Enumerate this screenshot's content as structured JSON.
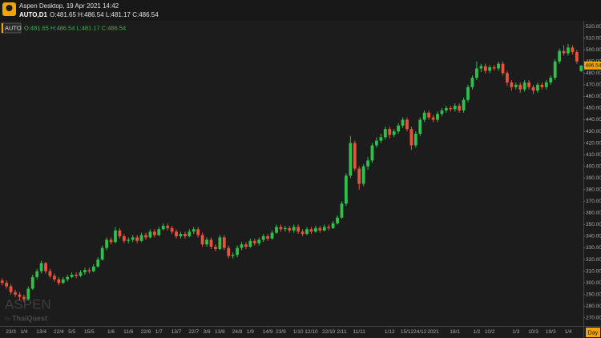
{
  "header": {
    "title": "Aspen Desktop, 19 Apr 2021 14:42",
    "symbol": "AUTO,D1",
    "ohlc": "O:481.65 H:486.54 L:481.17 C:486.54"
  },
  "chart_data": {
    "type": "candlestick",
    "symbol": "AUTO",
    "ohlc_text": "O:481.65 H:486.54 L:481.17 C:486.54",
    "categories": [
      null,
      null,
      "23/3",
      null,
      null,
      "1/4",
      null,
      null,
      null,
      "13/4",
      null,
      null,
      null,
      "22/4",
      null,
      null,
      "5/5",
      null,
      null,
      null,
      "15/5",
      null,
      null,
      null,
      null,
      "1/6",
      null,
      null,
      null,
      "11/6",
      null,
      null,
      null,
      "22/6",
      null,
      null,
      "1/7",
      null,
      null,
      null,
      "13/7",
      null,
      null,
      null,
      "22/7",
      null,
      null,
      "3/8",
      null,
      null,
      "13/8",
      null,
      null,
      null,
      "24/8",
      null,
      null,
      "1/9",
      null,
      null,
      null,
      "14/9",
      null,
      null,
      "23/9",
      null,
      null,
      null,
      "1/10",
      null,
      null,
      "12/10",
      null,
      null,
      null,
      "22/10",
      null,
      null,
      "2/11",
      null,
      null,
      null,
      "11/11",
      null,
      null,
      null,
      null,
      null,
      null,
      "1/12",
      null,
      null,
      null,
      "15/12",
      null,
      null,
      "24/12",
      null,
      null,
      "2021",
      null,
      null,
      null,
      null,
      "18/1",
      null,
      null,
      null,
      null,
      "1/2",
      null,
      null,
      "10/2",
      null,
      null,
      null,
      null,
      null,
      "1/3",
      null,
      null,
      null,
      "10/3",
      null,
      null,
      null,
      "19/3",
      null,
      null,
      null,
      "1/4",
      null,
      null,
      null
    ],
    "open": [
      302,
      300,
      297,
      292,
      290,
      288,
      286,
      295,
      305,
      310,
      317,
      310,
      306,
      303,
      300,
      303,
      305,
      307,
      306,
      309,
      311,
      310,
      314,
      320,
      330,
      337,
      335,
      345,
      340,
      336,
      337,
      339,
      336,
      341,
      339,
      344,
      341,
      346,
      349,
      347,
      344,
      340,
      342,
      340,
      344,
      346,
      341,
      333,
      337,
      331,
      329,
      339,
      330,
      323,
      324,
      330,
      333,
      331,
      336,
      334,
      337,
      340,
      338,
      343,
      348,
      346,
      347,
      345,
      348,
      344,
      342,
      346,
      344,
      347,
      345,
      348,
      347,
      351,
      356,
      368,
      392,
      420,
      398,
      385,
      400,
      405,
      418,
      422,
      425,
      432,
      427,
      430,
      435,
      440,
      432,
      418,
      428,
      440,
      446,
      442,
      440,
      445,
      448,
      450,
      449,
      452,
      448,
      457,
      468,
      476,
      484,
      486,
      482,
      485,
      484,
      488,
      480,
      472,
      468,
      470,
      466,
      472,
      468,
      465,
      470,
      468,
      472,
      476,
      490,
      499,
      497,
      502,
      498,
      481.65
    ],
    "high": [
      304,
      302,
      299,
      294,
      292,
      290,
      297,
      307,
      312,
      319,
      318,
      312,
      308,
      305,
      305,
      307,
      309,
      309,
      311,
      313,
      313,
      316,
      322,
      332,
      339,
      339,
      348,
      347,
      342,
      339,
      341,
      341,
      343,
      343,
      346,
      346,
      348,
      351,
      351,
      349,
      346,
      344,
      344,
      346,
      348,
      348,
      343,
      339,
      339,
      333,
      341,
      341,
      332,
      326,
      332,
      335,
      335,
      338,
      338,
      339,
      342,
      342,
      345,
      350,
      350,
      349,
      349,
      350,
      350,
      346,
      348,
      348,
      349,
      349,
      350,
      350,
      353,
      358,
      370,
      394,
      426,
      422,
      400,
      402,
      408,
      420,
      425,
      428,
      434,
      434,
      432,
      437,
      442,
      442,
      434,
      430,
      442,
      448,
      448,
      444,
      447,
      450,
      452,
      452,
      454,
      454,
      459,
      470,
      478,
      490,
      488,
      488,
      487,
      487,
      490,
      490,
      482,
      474,
      472,
      472,
      474,
      474,
      470,
      472,
      472,
      474,
      478,
      492,
      501,
      504,
      505,
      504,
      500,
      486.54
    ],
    "low": [
      298,
      295,
      290,
      288,
      285,
      284,
      285,
      294,
      303,
      308,
      308,
      304,
      301,
      298,
      299,
      301,
      304,
      304,
      305,
      307,
      308,
      309,
      313,
      319,
      328,
      333,
      334,
      338,
      334,
      334,
      335,
      334,
      335,
      337,
      338,
      339,
      340,
      345,
      345,
      342,
      338,
      338,
      338,
      339,
      342,
      339,
      331,
      331,
      329,
      327,
      328,
      328,
      321,
      321,
      322,
      328,
      329,
      330,
      332,
      332,
      335,
      336,
      337,
      342,
      344,
      344,
      343,
      343,
      342,
      340,
      341,
      342,
      343,
      343,
      344,
      345,
      346,
      350,
      355,
      366,
      390,
      396,
      380,
      383,
      397,
      403,
      416,
      420,
      423,
      424,
      425,
      428,
      433,
      430,
      414,
      416,
      426,
      438,
      440,
      438,
      438,
      443,
      446,
      447,
      447,
      446,
      446,
      455,
      466,
      474,
      481,
      480,
      480,
      482,
      482,
      478,
      469,
      465,
      466,
      463,
      464,
      466,
      462,
      463,
      466,
      466,
      470,
      474,
      488,
      495,
      495,
      496,
      488,
      481.17
    ],
    "close": [
      300,
      297,
      292,
      290,
      288,
      286,
      295,
      305,
      310,
      317,
      310,
      306,
      303,
      300,
      303,
      305,
      307,
      306,
      309,
      311,
      310,
      314,
      320,
      330,
      337,
      335,
      345,
      340,
      336,
      337,
      339,
      336,
      341,
      339,
      344,
      341,
      346,
      349,
      347,
      344,
      340,
      342,
      340,
      344,
      346,
      341,
      333,
      337,
      331,
      329,
      339,
      330,
      323,
      324,
      330,
      333,
      331,
      336,
      334,
      337,
      340,
      338,
      343,
      348,
      346,
      347,
      345,
      348,
      344,
      342,
      346,
      344,
      347,
      345,
      348,
      347,
      351,
      356,
      368,
      392,
      420,
      398,
      385,
      400,
      405,
      418,
      422,
      425,
      432,
      427,
      430,
      435,
      440,
      432,
      418,
      428,
      440,
      446,
      442,
      440,
      445,
      448,
      450,
      449,
      452,
      448,
      457,
      468,
      476,
      484,
      486,
      482,
      485,
      484,
      488,
      480,
      472,
      468,
      470,
      466,
      472,
      468,
      465,
      470,
      468,
      472,
      476,
      490,
      499,
      497,
      502,
      498,
      490,
      486.54
    ],
    "up_color": "#2fbf4a",
    "down_color": "#e8533c",
    "ylim": [
      263,
      523.5
    ],
    "yticks": [
      {
        "value": 270,
        "label": "270.00"
      },
      {
        "value": 280,
        "label": "280.00"
      },
      {
        "value": 290,
        "label": "290.00"
      },
      {
        "value": 300,
        "label": "300.00"
      },
      {
        "value": 310,
        "label": "310.00"
      },
      {
        "value": 320,
        "label": "320.00"
      },
      {
        "value": 330,
        "label": "330.00"
      },
      {
        "value": 340,
        "label": "340.00"
      },
      {
        "value": 350,
        "label": "350.00"
      },
      {
        "value": 360,
        "label": "360.00"
      },
      {
        "value": 370,
        "label": "370.00"
      },
      {
        "value": 380,
        "label": "380.00"
      },
      {
        "value": 390,
        "label": "390.00"
      },
      {
        "value": 400,
        "label": "400.00"
      },
      {
        "value": 410,
        "label": "410.00"
      },
      {
        "value": 420,
        "label": "420.00"
      },
      {
        "value": 430,
        "label": "430.00"
      },
      {
        "value": 440,
        "label": "440.00"
      },
      {
        "value": 450,
        "label": "450.00"
      },
      {
        "value": 460,
        "label": "460.00"
      },
      {
        "value": 470,
        "label": "470.00"
      },
      {
        "value": 480,
        "label": "480.00"
      },
      {
        "value": 490,
        "label": "490.00"
      },
      {
        "value": 500,
        "label": "500.00"
      },
      {
        "value": 510,
        "label": "510.00"
      },
      {
        "value": 520,
        "label": "520.00"
      }
    ],
    "last_price": {
      "value": 486.54,
      "label": "486.54"
    },
    "timeframe": "Day",
    "grid": false,
    "watermark": {
      "name": "ASPEN",
      "by": "by",
      "brand": "ThaiQuest"
    }
  }
}
